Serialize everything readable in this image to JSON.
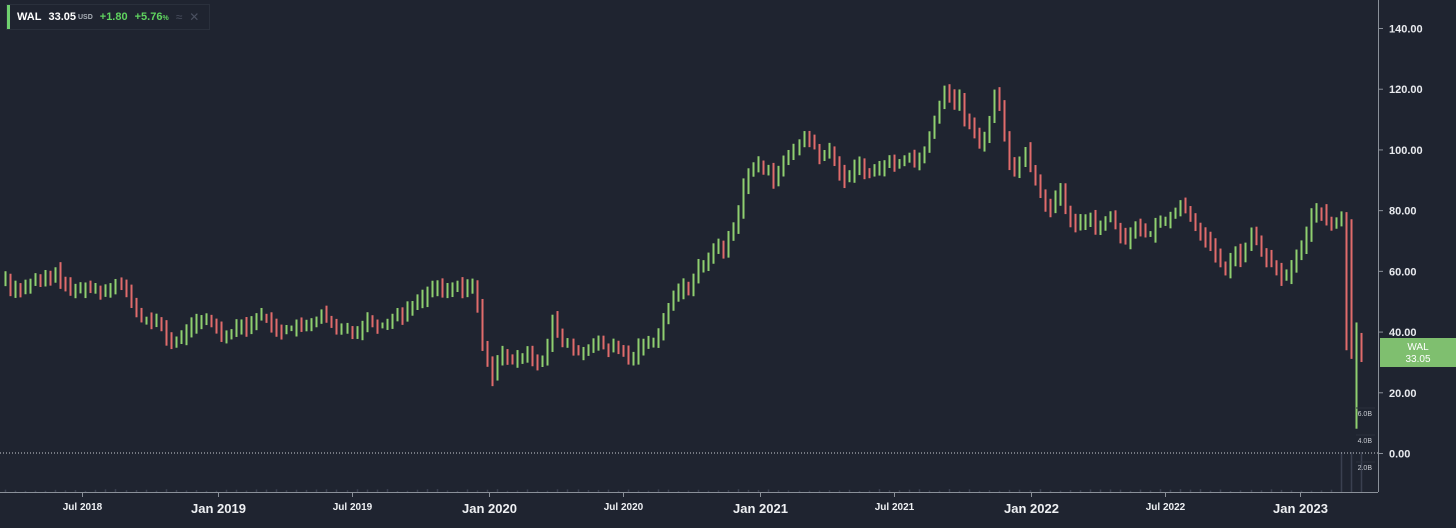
{
  "legend": {
    "ticker": "WAL",
    "price": "33.05",
    "currency": "USD",
    "change": "+1.80",
    "change_pct": "+5.76",
    "pct_sign": "%",
    "positive_color": "#5fd35f",
    "icons": [
      "wave-icon",
      "close-icon"
    ]
  },
  "price_badge": {
    "ticker": "WAL",
    "price": "33.05",
    "color": "#7fbf6f"
  },
  "chart_data": {
    "type": "ohlc",
    "y_ticks": [
      "140.00",
      "120.00",
      "100.00",
      "80.00",
      "60.00",
      "40.00",
      "20.00",
      "0.00"
    ],
    "ylim": [
      -13,
      145
    ],
    "x_ticks": [
      "Jul 2018",
      "Jan 2019",
      "Jul 2019",
      "Jan 2020",
      "Jul 2020",
      "Jan 2021",
      "Jul 2021",
      "Jan 2022",
      "Jul 2022",
      "Jan 2023"
    ],
    "x_tick_bold": [
      false,
      true,
      false,
      true,
      false,
      true,
      false,
      true,
      false,
      true
    ],
    "volume_ticks": [
      "6.0B",
      "4.0B",
      "2.0B"
    ],
    "up_color": "#8fcf6f",
    "down_color": "#e06b6b",
    "series": [
      {
        "name": "WAL",
        "period": "weekly",
        "start": "2018-03",
        "closes": [
          58,
          53,
          55,
          54,
          55,
          56,
          57,
          56,
          58,
          57,
          60,
          57,
          55,
          53,
          54,
          54,
          55,
          54,
          54,
          53,
          54,
          55,
          56,
          55,
          53,
          50,
          46,
          44,
          44,
          43,
          43,
          42,
          38,
          36,
          37,
          38,
          41,
          42,
          43,
          43,
          44,
          43,
          41,
          39,
          39,
          40,
          42,
          43,
          41,
          43,
          45,
          45,
          44,
          42,
          41,
          40,
          41,
          41,
          42,
          41,
          42,
          43,
          44,
          46,
          44,
          42,
          40,
          41,
          41,
          40,
          40,
          42,
          44,
          43,
          42,
          42,
          43,
          45,
          46,
          45,
          48,
          49,
          50,
          51,
          53,
          54,
          55,
          54,
          54,
          54,
          55,
          53,
          55,
          55,
          48,
          36,
          30,
          25,
          30,
          33,
          31,
          30,
          31,
          32,
          34,
          31,
          30,
          30,
          35,
          44,
          40,
          36,
          36,
          34,
          33,
          34,
          34,
          35,
          37,
          35,
          34,
          35,
          34,
          33,
          31,
          32,
          35,
          36,
          36,
          37,
          40,
          44,
          48,
          52,
          53,
          55,
          54,
          58,
          61,
          62,
          64,
          68,
          68,
          66,
          71,
          75,
          80,
          88,
          92,
          94,
          95,
          93,
          94,
          90,
          92,
          96,
          98,
          100,
          102,
          104,
          103,
          101,
          97,
          98,
          100,
          96,
          92,
          90,
          92,
          94,
          95,
          93,
          92,
          93,
          94,
          95,
          96,
          95,
          96,
          97,
          98,
          96,
          97,
          100,
          105,
          110,
          115,
          120,
          118,
          115,
          117,
          110,
          108,
          105,
          102,
          104,
          110,
          118,
          115,
          105,
          95,
          92,
          96,
          100,
          94,
          90,
          86,
          82,
          80,
          84,
          86,
          80,
          76,
          75,
          76,
          77,
          78,
          74,
          75,
          77,
          78,
          75,
          72,
          70,
          73,
          75,
          73,
          72,
          72,
          75,
          76,
          77,
          78,
          80,
          82,
          80,
          78,
          75,
          72,
          70,
          68,
          65,
          62,
          60,
          64,
          66,
          64,
          68,
          72,
          70,
          66,
          64,
          62,
          60,
          58,
          58,
          62,
          65,
          68,
          72,
          78,
          80,
          79,
          76,
          75,
          76,
          78,
          35,
          33,
          38,
          31
        ]
      }
    ]
  }
}
